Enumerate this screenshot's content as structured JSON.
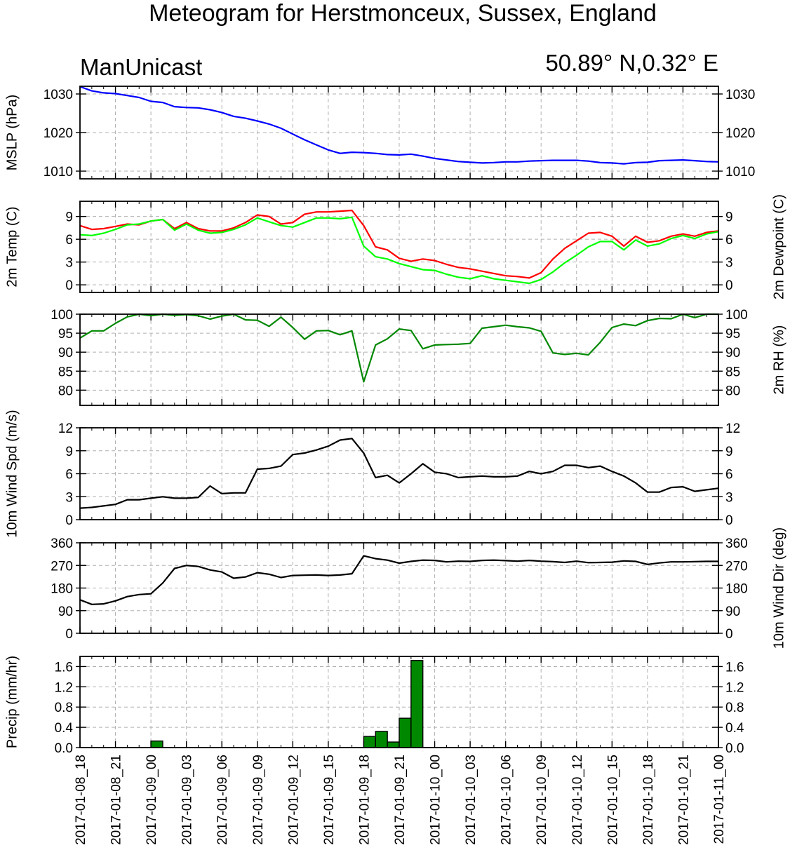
{
  "header": {
    "title": "Meteogram for Herstmonceux, Sussex, England",
    "model": "ManUnicast",
    "location": "50.89° N,0.32° E"
  },
  "x_tick_labels": [
    "2017-01-08_18",
    "2017-01-08_21",
    "2017-01-09_00",
    "2017-01-09_03",
    "2017-01-09_06",
    "2017-01-09_09",
    "2017-01-09_12",
    "2017-01-09_15",
    "2017-01-09_18",
    "2017-01-09_21",
    "2017-01-10_00",
    "2017-01-10_03",
    "2017-01-10_06",
    "2017-01-10_09",
    "2017-01-10_12",
    "2017-01-10_15",
    "2017-01-10_18",
    "2017-01-10_21",
    "2017-01-11_00"
  ],
  "colors": {
    "mslp": "#0000ff",
    "temperature": "#ff0000",
    "dewpoint": "#00ff00",
    "rh": "#008800",
    "wind": "#000000",
    "precip_fill": "#008800",
    "grid": "#b0b0b0"
  },
  "chart_data": [
    {
      "type": "line",
      "ylabel": "MSLP (hPa)",
      "ylabel_right": "",
      "ylim": [
        1008,
        1032
      ],
      "yticks": [
        1010,
        1020,
        1030
      ],
      "x_hours": [
        0,
        1,
        2,
        3,
        4,
        5,
        6,
        7,
        8,
        9,
        10,
        11,
        12,
        13,
        14,
        15,
        16,
        17,
        18,
        19,
        20,
        21,
        22,
        23,
        24,
        25,
        26,
        27,
        28,
        29,
        30,
        31,
        32,
        33,
        34,
        35,
        36,
        37,
        38,
        39,
        40,
        41,
        42,
        43,
        44,
        45,
        46,
        47,
        48,
        49,
        50,
        51,
        52,
        53,
        54
      ],
      "series": [
        {
          "key": "mslp",
          "values": [
            1031.9,
            1030.8,
            1030.3,
            1030.1,
            1029.6,
            1029.1,
            1028.1,
            1027.8,
            1026.7,
            1026.5,
            1026.4,
            1025.9,
            1025.2,
            1024.2,
            1023.7,
            1023.0,
            1022.2,
            1021.1,
            1019.6,
            1018.1,
            1016.8,
            1015.5,
            1014.6,
            1014.9,
            1014.8,
            1014.6,
            1014.3,
            1014.2,
            1014.4,
            1013.9,
            1013.3,
            1012.9,
            1012.5,
            1012.3,
            1012.1,
            1012.2,
            1012.4,
            1012.4,
            1012.6,
            1012.7,
            1012.8,
            1012.8,
            1012.8,
            1012.6,
            1012.2,
            1012.1,
            1011.9,
            1012.2,
            1012.3,
            1012.7,
            1012.8,
            1012.9,
            1012.7,
            1012.5,
            1012.4
          ]
        }
      ]
    },
    {
      "type": "line",
      "ylabel": "2m Temp (C)",
      "ylabel_right": "2m Dewpoint (C)",
      "ylim": [
        -1,
        11
      ],
      "yticks": [
        0,
        3,
        6,
        9
      ],
      "x_hours": [
        0,
        1,
        2,
        3,
        4,
        5,
        6,
        7,
        8,
        9,
        10,
        11,
        12,
        13,
        14,
        15,
        16,
        17,
        18,
        19,
        20,
        21,
        22,
        23,
        24,
        25,
        26,
        27,
        28,
        29,
        30,
        31,
        32,
        33,
        34,
        35,
        36,
        37,
        38,
        39,
        40,
        41,
        42,
        43,
        44,
        45,
        46,
        47,
        48,
        49,
        50,
        51,
        52,
        53,
        54
      ],
      "series": [
        {
          "key": "temperature",
          "values": [
            7.8,
            7.3,
            7.4,
            7.7,
            8.0,
            7.9,
            8.4,
            8.6,
            7.4,
            8.2,
            7.4,
            7.1,
            7.1,
            7.5,
            8.2,
            9.2,
            9.0,
            8.0,
            8.2,
            9.3,
            9.6,
            9.6,
            9.7,
            9.8,
            7.8,
            5.0,
            4.6,
            3.5,
            3.1,
            3.4,
            3.2,
            2.7,
            2.3,
            2.1,
            1.8,
            1.5,
            1.2,
            1.1,
            0.9,
            1.6,
            3.4,
            4.8,
            5.8,
            6.8,
            6.9,
            6.4,
            5.1,
            6.4,
            5.6,
            5.8,
            6.4,
            6.7,
            6.4,
            6.9,
            7.1
          ]
        },
        {
          "key": "dewpoint",
          "values": [
            6.6,
            6.5,
            6.8,
            7.3,
            7.9,
            8.0,
            8.4,
            8.6,
            7.2,
            8.0,
            7.2,
            6.8,
            6.9,
            7.3,
            7.9,
            8.8,
            8.3,
            7.8,
            7.6,
            8.2,
            8.8,
            8.8,
            8.7,
            8.9,
            5.1,
            3.7,
            3.4,
            2.8,
            2.4,
            2.0,
            1.9,
            1.4,
            1.0,
            0.8,
            1.2,
            0.8,
            0.6,
            0.4,
            0.2,
            0.7,
            1.7,
            2.9,
            3.9,
            5.0,
            5.7,
            5.7,
            4.6,
            5.9,
            5.1,
            5.4,
            6.1,
            6.5,
            6.1,
            6.7,
            7.0
          ]
        }
      ]
    },
    {
      "type": "line",
      "ylabel": "",
      "ylabel_right": "2m RH (%)",
      "ylim": [
        76,
        100
      ],
      "yticks": [
        80,
        85,
        90,
        95,
        100
      ],
      "x_hours": [
        0,
        1,
        2,
        3,
        4,
        5,
        6,
        7,
        8,
        9,
        10,
        11,
        12,
        13,
        14,
        15,
        16,
        17,
        18,
        19,
        20,
        21,
        22,
        23,
        24,
        25,
        26,
        27,
        28,
        29,
        30,
        31,
        32,
        33,
        34,
        35,
        36,
        37,
        38,
        39,
        40,
        41,
        42,
        43,
        44,
        45,
        46,
        47,
        48,
        49,
        50,
        51,
        52,
        53,
        54
      ],
      "series": [
        {
          "key": "rh",
          "values": [
            93.7,
            95.6,
            95.6,
            97.6,
            99.3,
            100.0,
            99.6,
            100.0,
            99.7,
            99.9,
            99.6,
            98.7,
            99.5,
            100.0,
            98.5,
            98.4,
            96.8,
            99.2,
            96.5,
            93.4,
            95.6,
            95.7,
            94.6,
            95.6,
            82.2,
            91.9,
            93.5,
            96.1,
            95.7,
            90.9,
            91.9,
            92.0,
            92.1,
            92.3,
            96.3,
            96.7,
            97.1,
            96.7,
            96.4,
            95.5,
            89.8,
            89.4,
            89.7,
            89.3,
            92.6,
            96.5,
            97.4,
            97.0,
            98.3,
            98.9,
            98.8,
            100.0,
            99.1,
            100.0,
            100.0
          ]
        }
      ]
    },
    {
      "type": "line",
      "ylabel": "10m Wind Spd (m/s)",
      "ylabel_right": "",
      "ylim": [
        0,
        12
      ],
      "yticks": [
        0,
        3,
        6,
        9,
        12
      ],
      "x_hours": [
        0,
        1,
        2,
        3,
        4,
        5,
        6,
        7,
        8,
        9,
        10,
        11,
        12,
        13,
        14,
        15,
        16,
        17,
        18,
        19,
        20,
        21,
        22,
        23,
        24,
        25,
        26,
        27,
        28,
        29,
        30,
        31,
        32,
        33,
        34,
        35,
        36,
        37,
        38,
        39,
        40,
        41,
        42,
        43,
        44,
        45,
        46,
        47,
        48,
        49,
        50,
        51,
        52,
        53,
        54
      ],
      "series": [
        {
          "key": "wind",
          "values": [
            1.5,
            1.6,
            1.8,
            2.0,
            2.6,
            2.6,
            2.8,
            3.0,
            2.8,
            2.8,
            2.9,
            4.4,
            3.4,
            3.5,
            3.5,
            6.6,
            6.7,
            7.0,
            8.5,
            8.7,
            9.1,
            9.6,
            10.4,
            10.6,
            8.7,
            5.5,
            5.8,
            4.8,
            6.0,
            7.3,
            6.2,
            6.0,
            5.5,
            5.6,
            5.7,
            5.6,
            5.6,
            5.7,
            6.3,
            6.0,
            6.3,
            7.1,
            7.1,
            6.8,
            7.0,
            6.3,
            5.7,
            4.8,
            3.6,
            3.6,
            4.2,
            4.3,
            3.7,
            3.9,
            4.1
          ]
        }
      ]
    },
    {
      "type": "line",
      "ylabel": "",
      "ylabel_right": "10m Wind Dir (deg)",
      "ylim": [
        0,
        360
      ],
      "yticks": [
        0,
        90,
        180,
        270,
        360
      ],
      "x_hours": [
        0,
        1,
        2,
        3,
        4,
        5,
        6,
        7,
        8,
        9,
        10,
        11,
        12,
        13,
        14,
        15,
        16,
        17,
        18,
        19,
        20,
        21,
        22,
        23,
        24,
        25,
        26,
        27,
        28,
        29,
        30,
        31,
        32,
        33,
        34,
        35,
        36,
        37,
        38,
        39,
        40,
        41,
        42,
        43,
        44,
        45,
        46,
        47,
        48,
        49,
        50,
        51,
        52,
        53,
        54
      ],
      "series": [
        {
          "key": "wind",
          "values": [
            133,
            115,
            117,
            129,
            146,
            154,
            157,
            200,
            258,
            270,
            266,
            252,
            244,
            219,
            224,
            241,
            235,
            222,
            230,
            231,
            232,
            230,
            232,
            237,
            308,
            297,
            291,
            279,
            286,
            291,
            290,
            284,
            287,
            286,
            290,
            291,
            289,
            287,
            290,
            287,
            285,
            282,
            287,
            281,
            282,
            283,
            288,
            286,
            274,
            280,
            284,
            284,
            285,
            286,
            286
          ]
        }
      ]
    },
    {
      "type": "bar",
      "ylabel": "Precip (mm/hr)",
      "ylabel_right": "",
      "ylim": [
        0,
        1.8
      ],
      "yticks": [
        0.0,
        0.4,
        0.8,
        1.2,
        1.6
      ],
      "ytick_labels": [
        "0.0",
        "0.4",
        "0.8",
        "1.2",
        "1.6"
      ],
      "x_hours": [
        0,
        1,
        2,
        3,
        4,
        5,
        6,
        7,
        8,
        9,
        10,
        11,
        12,
        13,
        14,
        15,
        16,
        17,
        18,
        19,
        20,
        21,
        22,
        23,
        24,
        25,
        26,
        27,
        28,
        29,
        30,
        31,
        32,
        33,
        34,
        35,
        36,
        37,
        38,
        39,
        40,
        41,
        42,
        43,
        44,
        45,
        46,
        47,
        48,
        49,
        50,
        51,
        52,
        53
      ],
      "values": [
        0,
        0,
        0,
        0,
        0,
        0,
        0.13,
        0,
        0,
        0,
        0,
        0,
        0,
        0,
        0,
        0,
        0,
        0,
        0,
        0,
        0,
        0,
        0,
        0,
        0.22,
        0.32,
        0.11,
        0.58,
        1.72,
        0,
        0,
        0,
        0,
        0,
        0,
        0,
        0,
        0,
        0,
        0,
        0,
        0,
        0,
        0,
        0,
        0,
        0,
        0,
        0,
        0,
        0,
        0,
        0,
        0
      ]
    }
  ]
}
